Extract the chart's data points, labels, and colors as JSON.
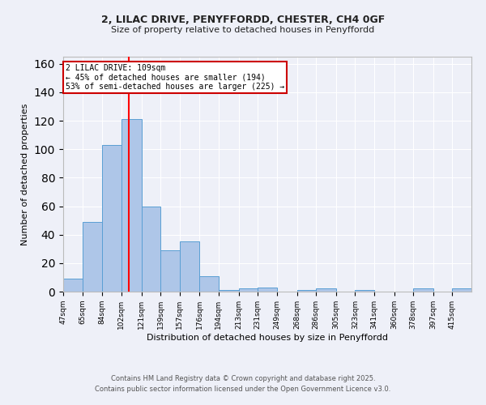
{
  "title1": "2, LILAC DRIVE, PENYFFORDD, CHESTER, CH4 0GF",
  "title2": "Size of property relative to detached houses in Penyffordd",
  "xlabel": "Distribution of detached houses by size in Penyffordd",
  "ylabel": "Number of detached properties",
  "bin_labels": [
    "47sqm",
    "65sqm",
    "84sqm",
    "102sqm",
    "121sqm",
    "139sqm",
    "157sqm",
    "176sqm",
    "194sqm",
    "213sqm",
    "231sqm",
    "249sqm",
    "268sqm",
    "286sqm",
    "305sqm",
    "323sqm",
    "341sqm",
    "360sqm",
    "378sqm",
    "397sqm",
    "415sqm"
  ],
  "bar_heights": [
    9,
    49,
    103,
    121,
    60,
    29,
    35,
    11,
    1,
    2,
    3,
    0,
    1,
    2,
    0,
    1,
    0,
    0,
    2,
    0,
    2
  ],
  "bar_color": "#aec6e8",
  "bar_edge_color": "#5a9fd4",
  "red_line_x": 109,
  "bin_edges": [
    47,
    65,
    84,
    102,
    121,
    139,
    157,
    176,
    194,
    213,
    231,
    249,
    268,
    286,
    305,
    323,
    341,
    360,
    378,
    397,
    415,
    433
  ],
  "annotation_title": "2 LILAC DRIVE: 109sqm",
  "annotation_line1": "← 45% of detached houses are smaller (194)",
  "annotation_line2": "53% of semi-detached houses are larger (225) →",
  "annotation_box_color": "#ffffff",
  "annotation_border_color": "#cc0000",
  "ylim": [
    0,
    165
  ],
  "yticks": [
    0,
    20,
    40,
    60,
    80,
    100,
    120,
    140,
    160
  ],
  "background_color": "#eef0f8",
  "grid_color": "#ffffff",
  "footer1": "Contains HM Land Registry data © Crown copyright and database right 2025.",
  "footer2": "Contains public sector information licensed under the Open Government Licence v3.0."
}
